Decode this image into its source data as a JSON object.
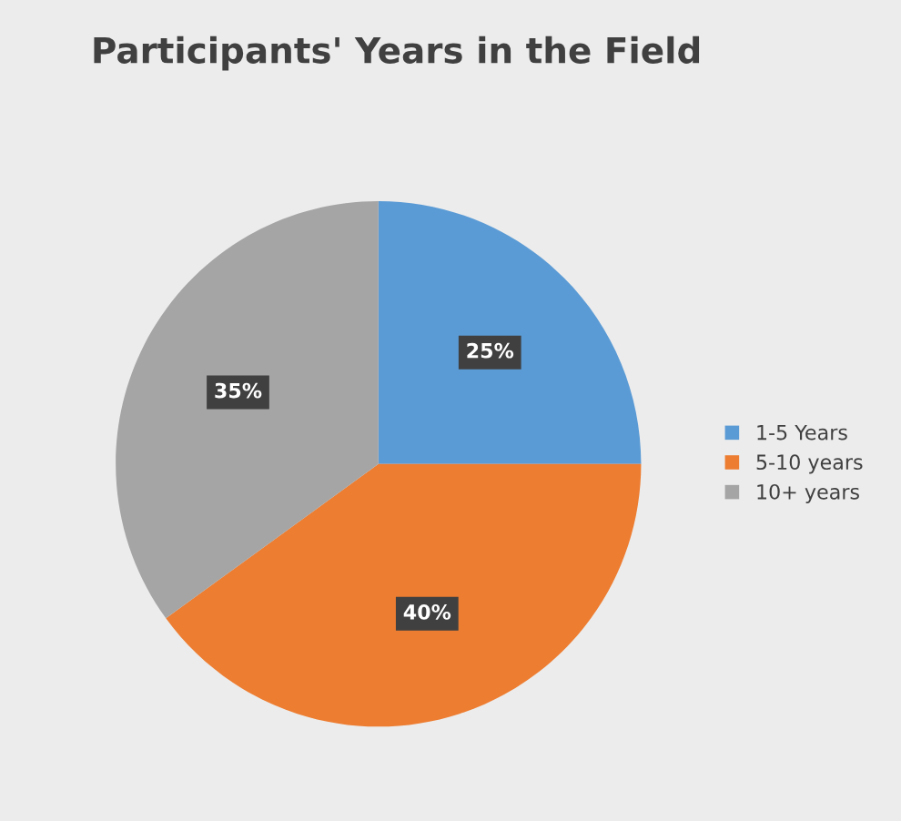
{
  "chart_data": {
    "type": "pie",
    "title": "Participants' Years in the Field",
    "categories": [
      "1-5 Years",
      "5-10 years",
      "10+ years"
    ],
    "values": [
      25,
      40,
      35
    ],
    "value_labels": [
      "25%",
      "40%",
      "35%"
    ],
    "colors": [
      "#5b9bd5",
      "#ed7d31",
      "#a5a5a5"
    ],
    "legend": "right"
  }
}
